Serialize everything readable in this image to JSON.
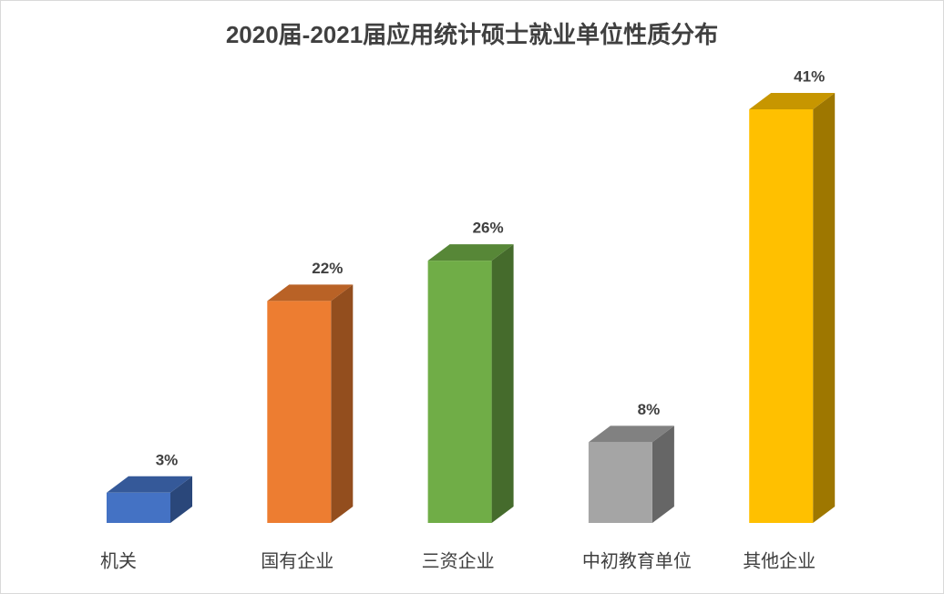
{
  "chart_data": {
    "type": "bar3d",
    "title": "2020届-2021届应用统计硕士就业单位性质分布",
    "categories": [
      "机关",
      "国有企业",
      "三资企业",
      "中初教育单位",
      "其他企业"
    ],
    "values": [
      3,
      22,
      26,
      8,
      41
    ],
    "value_labels": [
      "3%",
      "22%",
      "26%",
      "8%",
      "41%"
    ],
    "colors": [
      "#4472c4",
      "#ed7d31",
      "#70ad47",
      "#a5a5a5",
      "#ffc000"
    ]
  }
}
